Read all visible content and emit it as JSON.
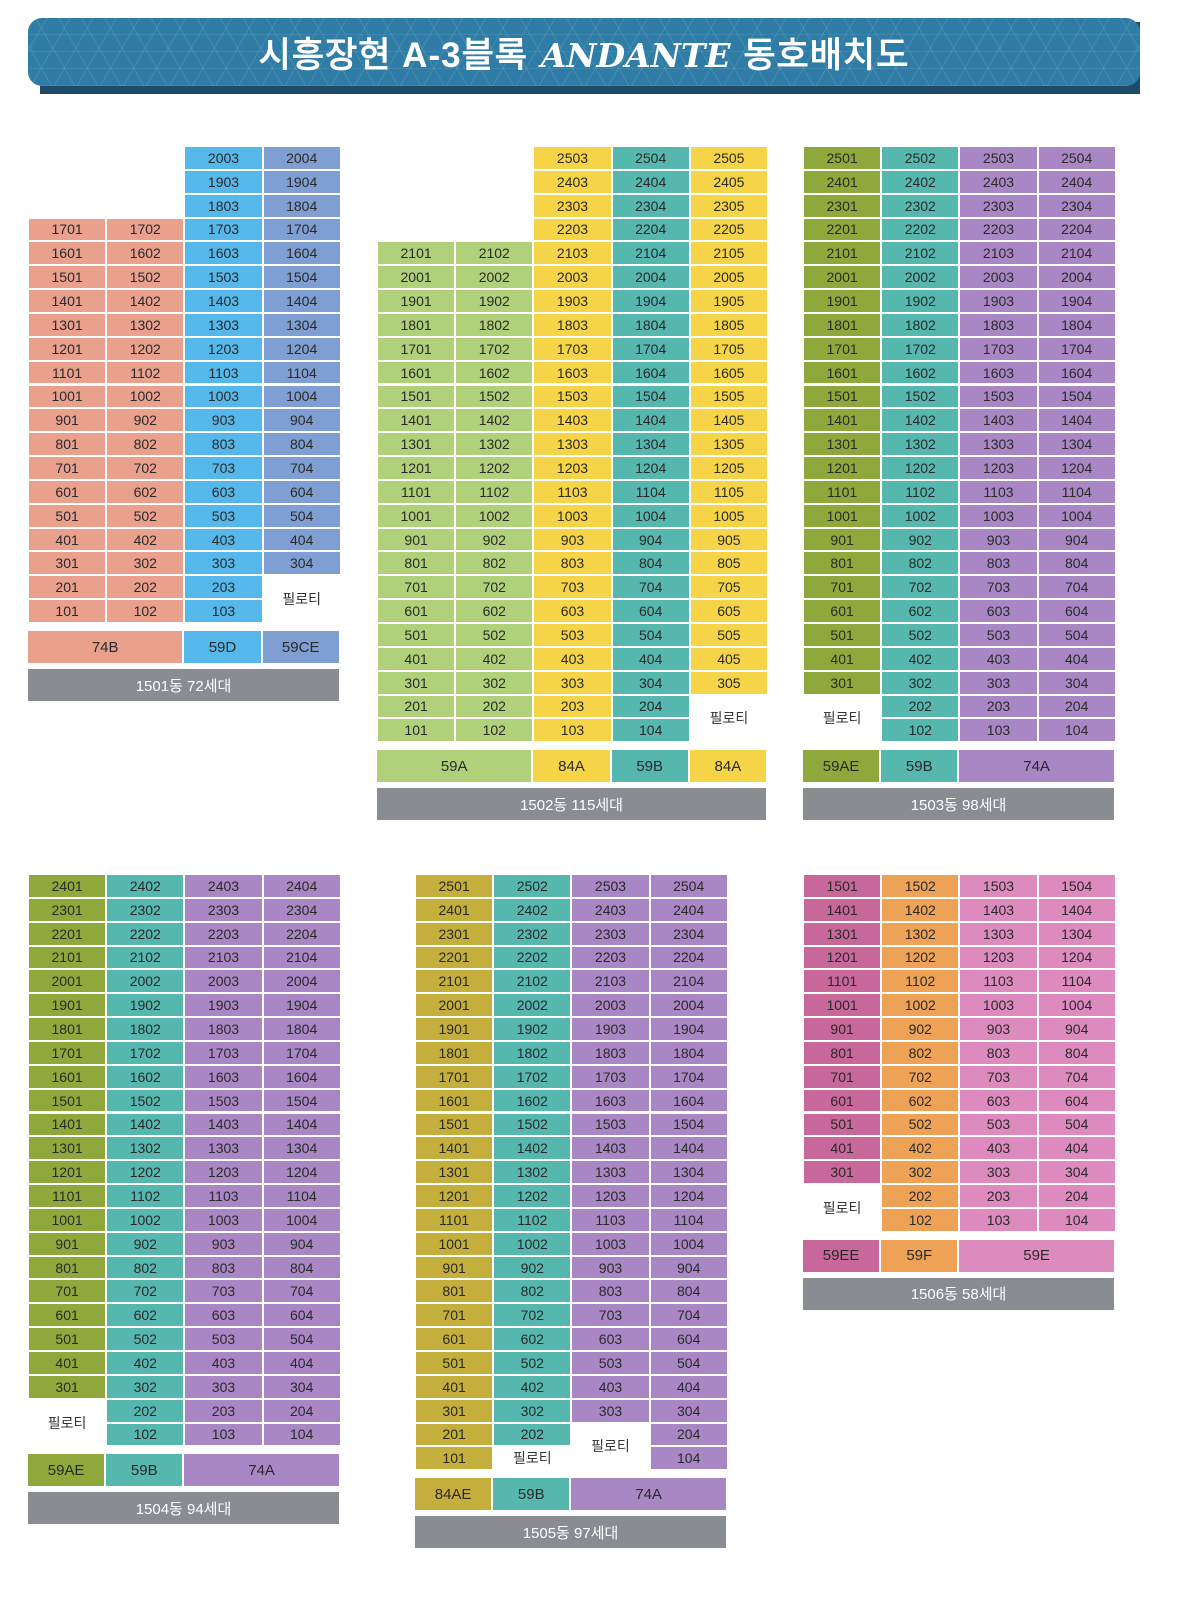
{
  "page_title_pre": "시흥장현 A-3블록",
  "page_title_brand": "ANDANTE",
  "page_title_post": "동호배치도",
  "piloti_label": "필로티",
  "colors": {
    "salmon": "#e9a08c",
    "sky": "#55b7ea",
    "steel": "#7f9fd2",
    "lime": "#b0d07a",
    "yellow": "#f5d547",
    "teal": "#56b7af",
    "olive": "#8ea83b",
    "lavender": "#a987c4",
    "mustard": "#c4ae3c",
    "magenta": "#c8679a",
    "orange": "#eda256",
    "pink": "#dd8abe",
    "label_bar": "#898d91"
  },
  "buildings": [
    {
      "id": "1501",
      "label": "1501동 72세대",
      "top_floor": 20,
      "columns": [
        {
          "line": "01",
          "color": "salmon",
          "top": 17,
          "bottom": 1
        },
        {
          "line": "02",
          "color": "salmon",
          "top": 17,
          "bottom": 1
        },
        {
          "line": "03",
          "color": "sky",
          "top": 20,
          "bottom": 1
        },
        {
          "line": "04",
          "color": "steel",
          "top": 20,
          "bottom": 3
        }
      ],
      "types": [
        {
          "name": "74B",
          "span": 2,
          "color": "salmon"
        },
        {
          "name": "59D",
          "span": 1,
          "color": "sky"
        },
        {
          "name": "59CE",
          "span": 1,
          "color": "steel"
        }
      ]
    },
    {
      "id": "1502",
      "label": "1502동 115세대",
      "top_floor": 25,
      "columns": [
        {
          "line": "01",
          "color": "lime",
          "top": 21,
          "bottom": 1
        },
        {
          "line": "02",
          "color": "lime",
          "top": 21,
          "bottom": 1
        },
        {
          "line": "03",
          "color": "yellow",
          "top": 25,
          "bottom": 1
        },
        {
          "line": "04",
          "color": "teal",
          "top": 25,
          "bottom": 1
        },
        {
          "line": "05",
          "color": "yellow",
          "top": 25,
          "bottom": 3
        }
      ],
      "types": [
        {
          "name": "59A",
          "span": 2,
          "color": "lime"
        },
        {
          "name": "84A",
          "span": 1,
          "color": "yellow"
        },
        {
          "name": "59B",
          "span": 1,
          "color": "teal"
        },
        {
          "name": "84A",
          "span": 1,
          "color": "yellow"
        }
      ]
    },
    {
      "id": "1503",
      "label": "1503동 98세대",
      "top_floor": 25,
      "columns": [
        {
          "line": "01",
          "color": "olive",
          "top": 25,
          "bottom": 3
        },
        {
          "line": "02",
          "color": "teal",
          "top": 25,
          "bottom": 1
        },
        {
          "line": "03",
          "color": "lavender",
          "top": 25,
          "bottom": 1
        },
        {
          "line": "04",
          "color": "lavender",
          "top": 25,
          "bottom": 1
        }
      ],
      "types": [
        {
          "name": "59AE",
          "span": 1,
          "color": "olive"
        },
        {
          "name": "59B",
          "span": 1,
          "color": "teal"
        },
        {
          "name": "74A",
          "span": 2,
          "color": "lavender"
        }
      ]
    },
    {
      "id": "1504",
      "label": "1504동 94세대",
      "top_floor": 24,
      "columns": [
        {
          "line": "01",
          "color": "olive",
          "top": 24,
          "bottom": 3
        },
        {
          "line": "02",
          "color": "teal",
          "top": 24,
          "bottom": 1
        },
        {
          "line": "03",
          "color": "lavender",
          "top": 24,
          "bottom": 1
        },
        {
          "line": "04",
          "color": "lavender",
          "top": 24,
          "bottom": 1
        }
      ],
      "types": [
        {
          "name": "59AE",
          "span": 1,
          "color": "olive"
        },
        {
          "name": "59B",
          "span": 1,
          "color": "teal"
        },
        {
          "name": "74A",
          "span": 2,
          "color": "lavender"
        }
      ]
    },
    {
      "id": "1505",
      "label": "1505동 97세대",
      "top_floor": 25,
      "columns": [
        {
          "line": "01",
          "color": "mustard",
          "top": 25,
          "bottom": 1
        },
        {
          "line": "02",
          "color": "teal",
          "top": 25,
          "bottom": 2
        },
        {
          "line": "03",
          "color": "lavender",
          "top": 25,
          "bottom": 3
        },
        {
          "line": "04",
          "color": "lavender",
          "top": 25,
          "bottom": 1
        }
      ],
      "types": [
        {
          "name": "84AE",
          "span": 1,
          "color": "mustard"
        },
        {
          "name": "59B",
          "span": 1,
          "color": "teal"
        },
        {
          "name": "74A",
          "span": 2,
          "color": "lavender"
        }
      ]
    },
    {
      "id": "1506",
      "label": "1506동 58세대",
      "top_floor": 15,
      "columns": [
        {
          "line": "01",
          "color": "magenta",
          "top": 15,
          "bottom": 3
        },
        {
          "line": "02",
          "color": "orange",
          "top": 15,
          "bottom": 1
        },
        {
          "line": "03",
          "color": "pink",
          "top": 15,
          "bottom": 1
        },
        {
          "line": "04",
          "color": "pink",
          "top": 15,
          "bottom": 1
        }
      ],
      "types": [
        {
          "name": "59EE",
          "span": 1,
          "color": "magenta"
        },
        {
          "name": "59F",
          "span": 1,
          "color": "orange"
        },
        {
          "name": "59E",
          "span": 2,
          "color": "pink"
        }
      ]
    }
  ]
}
